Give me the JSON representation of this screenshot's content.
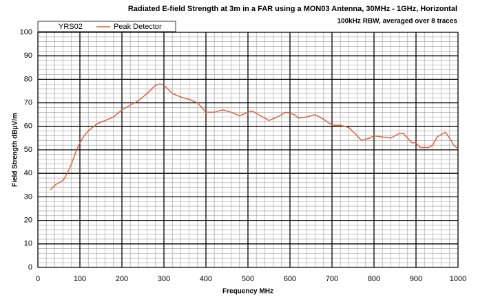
{
  "chart_data": {
    "type": "line",
    "title": "Radiated E-field Strength at 3m in a FAR using a MON03 Antenna, 30MHz - 1GHz, Horizontal",
    "subtitle": "100kHz RBW, averaged over 8 traces",
    "x_label": "Frequency MHz",
    "y_label": "Field Strength dBμV/m",
    "legend_title": "YRS02",
    "x": [
      30,
      40,
      50,
      60,
      70,
      80,
      90,
      100,
      110,
      120,
      140,
      160,
      180,
      200,
      220,
      240,
      260,
      280,
      290,
      300,
      320,
      340,
      360,
      380,
      400,
      420,
      440,
      460,
      480,
      500,
      510,
      530,
      550,
      570,
      590,
      610,
      620,
      640,
      660,
      680,
      700,
      720,
      740,
      760,
      770,
      790,
      800,
      820,
      840,
      860,
      870,
      880,
      890,
      900,
      910,
      930,
      940,
      950,
      970,
      980,
      990,
      1000
    ],
    "series": [
      {
        "name": "Peak Detector",
        "color": "#e0603a",
        "values": [
          33,
          35,
          36,
          37,
          40,
          44,
          49,
          53,
          56,
          58,
          61,
          62.5,
          64,
          67,
          69,
          71,
          74,
          77.5,
          78,
          77.5,
          74,
          72.5,
          71.5,
          70,
          66,
          66,
          67,
          66,
          64.5,
          66,
          66.5,
          64.5,
          62.5,
          64,
          66,
          65,
          63.5,
          64,
          65,
          63,
          60.5,
          60.5,
          59.5,
          56,
          54,
          55,
          56,
          55.5,
          55,
          57,
          57,
          55,
          53,
          53,
          51,
          51,
          52,
          55.5,
          57.5,
          55,
          52,
          50.5
        ]
      }
    ],
    "xlim": [
      0,
      1000
    ],
    "xticks": [
      0,
      100,
      200,
      300,
      400,
      500,
      600,
      700,
      800,
      900,
      1000
    ],
    "ylim": [
      0,
      100
    ],
    "yticks": [
      0,
      10,
      20,
      30,
      40,
      50,
      60,
      70,
      80,
      90,
      100
    ],
    "grid": true,
    "legend": "top-left"
  }
}
